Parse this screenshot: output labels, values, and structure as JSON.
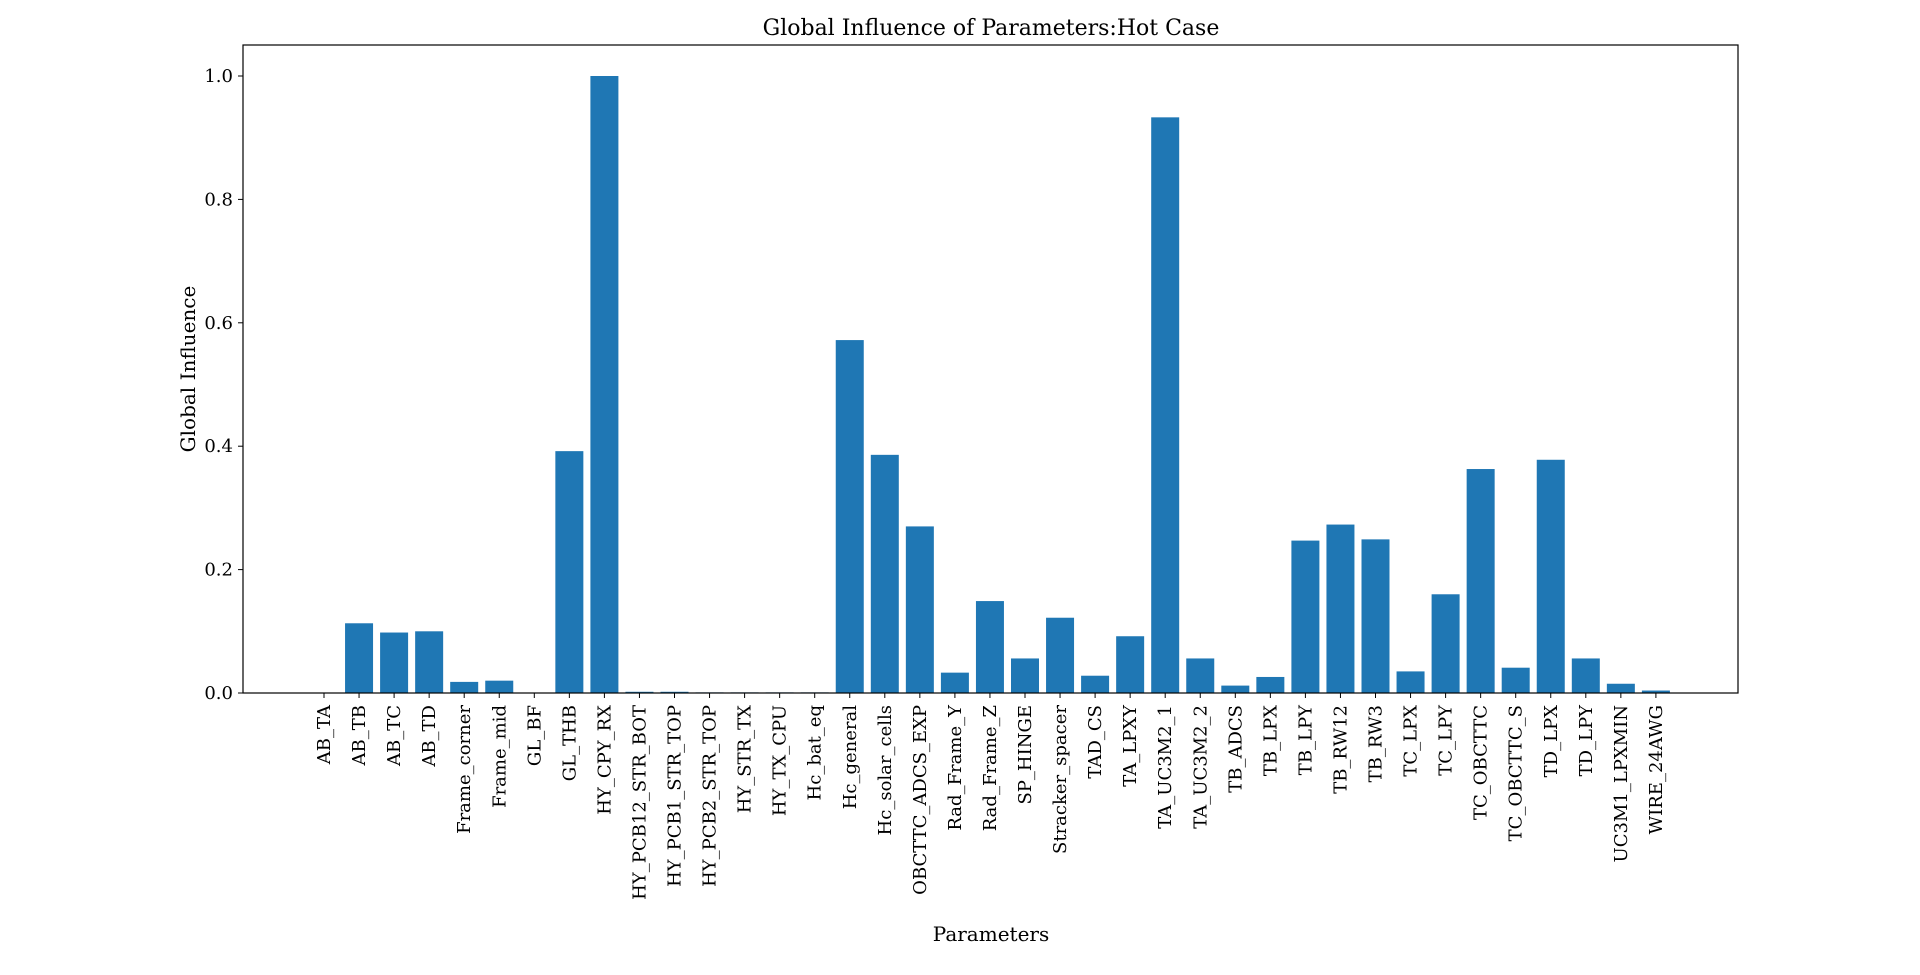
{
  "chart_data": {
    "type": "bar",
    "title": "Global Influence of Parameters:Hot Case",
    "xlabel": "Parameters",
    "ylabel": "Global Influence",
    "ylim": [
      0,
      1.05
    ],
    "yticks": [
      0.0,
      0.2,
      0.4,
      0.6,
      0.8,
      1.0
    ],
    "ytick_labels": [
      "0.0",
      "0.2",
      "0.4",
      "0.6",
      "0.8",
      "1.0"
    ],
    "grid": false,
    "legend": "none",
    "bar_color": "#1f77b4",
    "categories": [
      "AB_TA",
      "AB_TB",
      "AB_TC",
      "AB_TD",
      "Frame_corner",
      "Frame_mid",
      "GL_BF",
      "GL_THB",
      "HY_CPY_RX",
      "HY_PCB12_STR_BOT",
      "HY_PCB1_STR_TOP",
      "HY_PCB2_STR_TOP",
      "HY_STR_TX",
      "HY_TX_CPU",
      "Hc_bat_eq",
      "Hc_general",
      "Hc_solar_cells",
      "OBCTTC_ADCS_EXP",
      "Rad_Frame_Y",
      "Rad_Frame_Z",
      "SP_HINGE",
      "Stracker_spacer",
      "TAD_CS",
      "TA_LPXY",
      "TA_UC3M2_1",
      "TA_UC3M2_2",
      "TB_ADCS",
      "TB_LPX",
      "TB_LPY",
      "TB_RW12",
      "TB_RW3",
      "TC_LPX",
      "TC_LPY",
      "TC_OBCTTC",
      "TC_OBCTTC_S",
      "TD_LPX",
      "TD_LPY",
      "UC3M1_LPXMIN",
      "WIRE_24AWG"
    ],
    "values": [
      0.0,
      0.113,
      0.098,
      0.1,
      0.018,
      0.02,
      0.0,
      0.392,
      1.0,
      0.002,
      0.002,
      0.001,
      0.001,
      0.001,
      0.001,
      0.572,
      0.386,
      0.27,
      0.033,
      0.149,
      0.056,
      0.122,
      0.028,
      0.092,
      0.933,
      0.056,
      0.012,
      0.026,
      0.247,
      0.273,
      0.249,
      0.035,
      0.16,
      0.363,
      0.041,
      0.378,
      0.056,
      0.015,
      0.004
    ]
  }
}
